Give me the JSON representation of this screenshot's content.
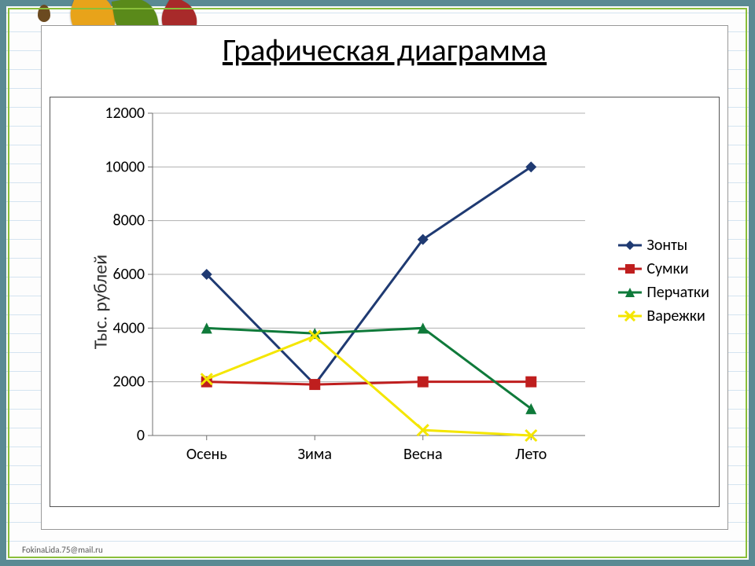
{
  "title": "Графическая диаграмма",
  "ylabel": "Тыс. рублей",
  "footer": "FokinaLida.75@mail.ru",
  "chart": {
    "type": "line",
    "background_color": "#ffffff",
    "grid_color": "#b0b0b0",
    "axis_color": "#707070",
    "tick_fontsize": 20,
    "categories": [
      "Осень",
      "Зима",
      "Весна",
      "Лето"
    ],
    "ylim": [
      0,
      12000
    ],
    "ytick_step": 2000,
    "yticks": [
      0,
      2000,
      4000,
      6000,
      8000,
      10000,
      12000
    ],
    "line_width": 3,
    "marker_size": 7,
    "series": [
      {
        "name": "Зонты",
        "color": "#1f3a72",
        "marker": "diamond",
        "values": [
          6000,
          1900,
          7300,
          10000
        ]
      },
      {
        "name": "Сумки",
        "color": "#bf1e1e",
        "marker": "square",
        "values": [
          2000,
          1900,
          2000,
          2000
        ]
      },
      {
        "name": "Перчатки",
        "color": "#0f7a3a",
        "marker": "triangle",
        "values": [
          4000,
          3800,
          4000,
          1000
        ]
      },
      {
        "name": "Варежки",
        "color": "#f4e600",
        "marker": "x",
        "values": [
          2100,
          3700,
          200,
          0
        ]
      }
    ]
  }
}
